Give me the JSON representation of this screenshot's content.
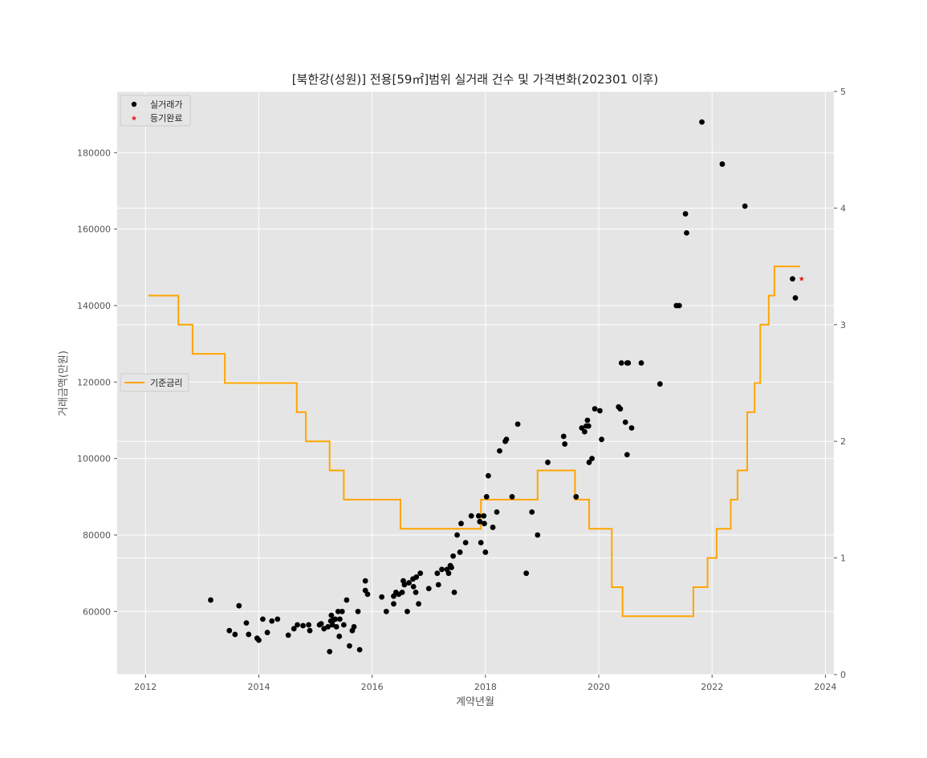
{
  "chart_data": {
    "type": "scatter",
    "title": "[북한강(성원)] 전용[59㎡]범위 실거래 건수 및 가격변화(202301 이후)",
    "xlabel": "계약년월",
    "ylabel": "거래금액(만원)",
    "xlim": [
      2011.5,
      2024.15
    ],
    "ylim": [
      43500,
      196000
    ],
    "y2lim": [
      0,
      5
    ],
    "x_ticks": [
      2012,
      2014,
      2016,
      2018,
      2020,
      2022,
      2024
    ],
    "y_ticks": [
      60000,
      80000,
      100000,
      120000,
      140000,
      160000,
      180000
    ],
    "y2_ticks": [
      0,
      1,
      2,
      3,
      4,
      5
    ],
    "grid": true,
    "colors": {
      "background": "#e5e5e5",
      "grid": "#ffffff",
      "points": "#000000",
      "registered": "#e41a1c",
      "rate": "#ffa500"
    },
    "legend_points": {
      "placement": "top-left",
      "entries": [
        {
          "label": "실거래가",
          "marker": "circle",
          "color": "#000000"
        },
        {
          "label": "등기완료",
          "marker": "star",
          "color": "#e41a1c"
        }
      ]
    },
    "legend_rate": {
      "placement": "center-left",
      "entries": [
        {
          "label": "기준금리",
          "marker": "line",
          "color": "#ffa500"
        }
      ]
    },
    "series": [
      {
        "name": "실거래가",
        "kind": "scatter",
        "axis": "left",
        "points": [
          [
            2013.15,
            63000
          ],
          [
            2013.48,
            55000
          ],
          [
            2013.58,
            54000
          ],
          [
            2013.65,
            61500
          ],
          [
            2013.78,
            57000
          ],
          [
            2013.82,
            54000
          ],
          [
            2013.97,
            53000
          ],
          [
            2014.0,
            52500
          ],
          [
            2014.07,
            58000
          ],
          [
            2014.15,
            54500
          ],
          [
            2014.23,
            57500
          ],
          [
            2014.33,
            58000
          ],
          [
            2014.52,
            53800
          ],
          [
            2014.62,
            55500
          ],
          [
            2014.68,
            56500
          ],
          [
            2014.78,
            56300
          ],
          [
            2014.88,
            56500
          ],
          [
            2014.9,
            55000
          ],
          [
            2015.07,
            56500
          ],
          [
            2015.1,
            56800
          ],
          [
            2015.15,
            55500
          ],
          [
            2015.22,
            56000
          ],
          [
            2015.25,
            49500
          ],
          [
            2015.27,
            57500
          ],
          [
            2015.28,
            59000
          ],
          [
            2015.3,
            56500
          ],
          [
            2015.32,
            57800
          ],
          [
            2015.35,
            58000
          ],
          [
            2015.37,
            56000
          ],
          [
            2015.4,
            60000
          ],
          [
            2015.42,
            53500
          ],
          [
            2015.43,
            58000
          ],
          [
            2015.47,
            60000
          ],
          [
            2015.5,
            56500
          ],
          [
            2015.55,
            63000
          ],
          [
            2015.6,
            51000
          ],
          [
            2015.65,
            55000
          ],
          [
            2015.68,
            56000
          ],
          [
            2015.75,
            60000
          ],
          [
            2015.78,
            50000
          ],
          [
            2015.88,
            65500
          ],
          [
            2015.88,
            68000
          ],
          [
            2015.92,
            64500
          ],
          [
            2016.17,
            63800
          ],
          [
            2016.25,
            60000
          ],
          [
            2016.38,
            62000
          ],
          [
            2016.38,
            64000
          ],
          [
            2016.42,
            65000
          ],
          [
            2016.47,
            64500
          ],
          [
            2016.53,
            65000
          ],
          [
            2016.55,
            68000
          ],
          [
            2016.57,
            67000
          ],
          [
            2016.62,
            60000
          ],
          [
            2016.65,
            67500
          ],
          [
            2016.72,
            68500
          ],
          [
            2016.73,
            66500
          ],
          [
            2016.77,
            65000
          ],
          [
            2016.78,
            69000
          ],
          [
            2016.82,
            62000
          ],
          [
            2016.85,
            70000
          ],
          [
            2017.0,
            66000
          ],
          [
            2017.15,
            70000
          ],
          [
            2017.17,
            67000
          ],
          [
            2017.23,
            71000
          ],
          [
            2017.32,
            71000
          ],
          [
            2017.35,
            70000
          ],
          [
            2017.38,
            72000
          ],
          [
            2017.4,
            71500
          ],
          [
            2017.43,
            74500
          ],
          [
            2017.45,
            65000
          ],
          [
            2017.5,
            80000
          ],
          [
            2017.55,
            75500
          ],
          [
            2017.57,
            83000
          ],
          [
            2017.65,
            78000
          ],
          [
            2017.75,
            85000
          ],
          [
            2017.88,
            85000
          ],
          [
            2017.9,
            83500
          ],
          [
            2017.92,
            78000
          ],
          [
            2017.97,
            85000
          ],
          [
            2017.98,
            83000
          ],
          [
            2018.0,
            75500
          ],
          [
            2018.02,
            90000
          ],
          [
            2018.05,
            95500
          ],
          [
            2018.13,
            82000
          ],
          [
            2018.2,
            86000
          ],
          [
            2018.25,
            102000
          ],
          [
            2018.35,
            104500
          ],
          [
            2018.37,
            105000
          ],
          [
            2018.47,
            90000
          ],
          [
            2018.57,
            109000
          ],
          [
            2018.72,
            70000
          ],
          [
            2018.82,
            86000
          ],
          [
            2018.92,
            80000
          ],
          [
            2019.1,
            99000
          ],
          [
            2019.38,
            105800
          ],
          [
            2019.4,
            103800
          ],
          [
            2019.6,
            90000
          ],
          [
            2019.7,
            108000
          ],
          [
            2019.75,
            107000
          ],
          [
            2019.78,
            108500
          ],
          [
            2019.8,
            110000
          ],
          [
            2019.82,
            108500
          ],
          [
            2019.83,
            99000
          ],
          [
            2019.88,
            100000
          ],
          [
            2019.93,
            113000
          ],
          [
            2020.02,
            112500
          ],
          [
            2020.05,
            105000
          ],
          [
            2020.35,
            113500
          ],
          [
            2020.38,
            113000
          ],
          [
            2020.4,
            125000
          ],
          [
            2020.47,
            109500
          ],
          [
            2020.5,
            125000
          ],
          [
            2020.52,
            125000
          ],
          [
            2020.5,
            101000
          ],
          [
            2020.58,
            108000
          ],
          [
            2020.75,
            125000
          ],
          [
            2021.08,
            119500
          ],
          [
            2021.37,
            140000
          ],
          [
            2021.42,
            140000
          ],
          [
            2021.53,
            164000
          ],
          [
            2021.55,
            159000
          ],
          [
            2021.82,
            188000
          ],
          [
            2022.18,
            177000
          ],
          [
            2022.58,
            166000
          ],
          [
            2023.42,
            147000
          ],
          [
            2023.47,
            142000
          ]
        ]
      },
      {
        "name": "등기완료",
        "kind": "scatter",
        "axis": "left",
        "points": [
          [
            2023.58,
            147000
          ]
        ]
      },
      {
        "name": "기준금리",
        "kind": "step",
        "axis": "right",
        "points": [
          [
            2012.05,
            3.25
          ],
          [
            2012.58,
            3.0
          ],
          [
            2012.83,
            2.75
          ],
          [
            2013.4,
            2.5
          ],
          [
            2014.67,
            2.25
          ],
          [
            2014.83,
            2.0
          ],
          [
            2015.25,
            1.75
          ],
          [
            2015.5,
            1.5
          ],
          [
            2016.5,
            1.25
          ],
          [
            2017.92,
            1.5
          ],
          [
            2018.92,
            1.75
          ],
          [
            2019.58,
            1.5
          ],
          [
            2019.83,
            1.25
          ],
          [
            2020.23,
            0.75
          ],
          [
            2020.42,
            0.5
          ],
          [
            2021.67,
            0.75
          ],
          [
            2021.92,
            1.0
          ],
          [
            2022.08,
            1.25
          ],
          [
            2022.33,
            1.5
          ],
          [
            2022.45,
            1.75
          ],
          [
            2022.62,
            2.25
          ],
          [
            2022.75,
            2.5
          ],
          [
            2022.85,
            3.0
          ],
          [
            2023.0,
            3.25
          ],
          [
            2023.1,
            3.5
          ],
          [
            2023.55,
            3.5
          ]
        ]
      }
    ]
  }
}
